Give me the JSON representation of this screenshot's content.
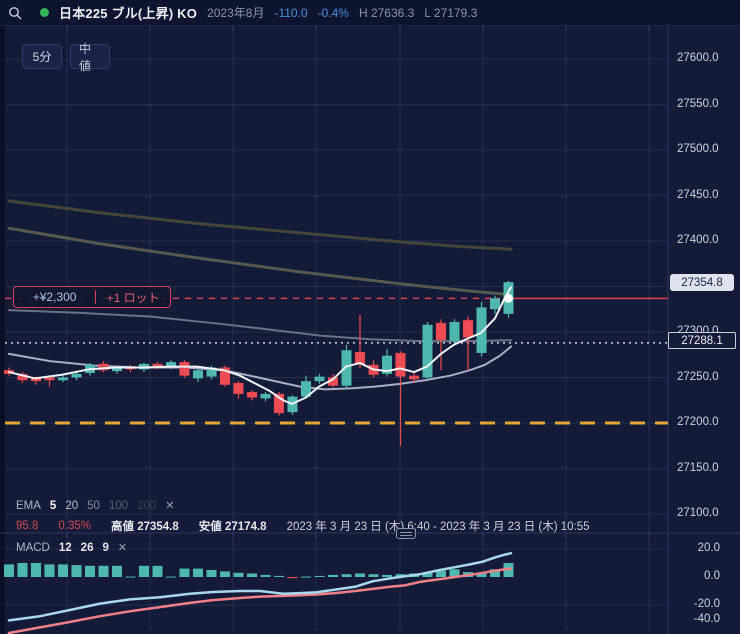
{
  "top_bar": {
    "symbol": "日本225 ブル(上昇) KO",
    "month": "2023年8月",
    "change": "-110.0",
    "change_pct": "-0.4%",
    "high": "H 27636.3",
    "low": "L 27179.3"
  },
  "toolbar": {
    "interval_button": "5分",
    "mid_price_button": "中値"
  },
  "position_box": {
    "pnl": "+¥2,300",
    "lots": "+1 ロット"
  },
  "badges": {
    "last_price": "27354.8",
    "mid_price": "27288.1"
  },
  "ema_legend": {
    "label": "EMA",
    "periods": [
      "5",
      "20",
      "50",
      "100",
      "200"
    ],
    "close": "✕"
  },
  "info_row": {
    "change": "95.8",
    "change_pct": "0.35%",
    "high_label": "高値",
    "high_value": "27354.8",
    "low_label": "安値",
    "low_value": "27174.8",
    "date_range": "2023 年 3 月 23 日 (木) 6:40 - 2023 年 3 月 23 日 (木) 10:55"
  },
  "macd_legend": {
    "label": "MACD",
    "params": [
      "12",
      "26",
      "9"
    ],
    "close": "✕"
  },
  "colors": {
    "background": "#131b38",
    "topbar": "#0d1430",
    "up_candle": "#4fb8ae",
    "down_candle": "#ef4b52",
    "position_line": "#e8404e",
    "mid_line": "#d2d8e6",
    "support_line": "#e5a532",
    "macd_line": "#a9d7ee",
    "signal_line": "#ef8089",
    "ema5": "#f2f4f8",
    "ema20": "#a9b0c4",
    "ema50": "#6b7288",
    "ema100": "#565a4e",
    "ema200": "#45463a",
    "grid": "rgba(130,150,205,0.16)",
    "blue_text": "#4b8fdd",
    "green_dot": "#33b35a"
  },
  "chart_data": {
    "type": "candlestick+macd",
    "title": "日本225 ブル(上昇) KO 5分足",
    "price_axis": {
      "labeled_ticks": [
        27600.0,
        27550.0,
        27500.0,
        27450.0,
        27400.0,
        27300.0,
        27250.0,
        27200.0,
        27150.0,
        27100.0
      ],
      "grid_ticks": [
        27600,
        27550,
        27500,
        27450,
        27400,
        27350,
        27300,
        27250,
        27200,
        27150,
        27100
      ],
      "last_price": 27354.8,
      "mid_price": 27288.1
    },
    "reference_lines": {
      "position_entry": 27337.0,
      "mid": 27288.1,
      "support": 27200.0
    },
    "session": {
      "high": 27354.8,
      "low": 27174.8,
      "change": 95.8,
      "change_pct": 0.35
    },
    "candles": [
      [
        27258,
        27261,
        27252,
        27254
      ],
      [
        27254,
        27256,
        27244,
        27247
      ],
      [
        27249,
        27251,
        27242,
        27246
      ],
      [
        27250,
        27252,
        27240,
        27247
      ],
      [
        27247,
        27252,
        27245,
        27250
      ],
      [
        27250,
        27256,
        27247,
        27254
      ],
      [
        27255,
        27266,
        27252,
        27264
      ],
      [
        27265,
        27268,
        27256,
        27258
      ],
      [
        27257,
        27263,
        27254,
        27262
      ],
      [
        27262,
        27264,
        27256,
        27259
      ],
      [
        27259,
        27266,
        27256,
        27265
      ],
      [
        27265,
        27267,
        27259,
        27261
      ],
      [
        27261,
        27269,
        27259,
        27267
      ],
      [
        27267,
        27269,
        27250,
        27252
      ],
      [
        27249,
        27260,
        27245,
        27258
      ],
      [
        27251,
        27263,
        27248,
        27261
      ],
      [
        27261,
        27263,
        27240,
        27242
      ],
      [
        27244,
        27246,
        27227,
        27232
      ],
      [
        27234,
        27236,
        27225,
        27228
      ],
      [
        27227,
        27234,
        27224,
        27232
      ],
      [
        27232,
        27234,
        27208,
        27211
      ],
      [
        27212,
        27231,
        27209,
        27229
      ],
      [
        27229,
        27252,
        27227,
        27246
      ],
      [
        27246,
        27254,
        27243,
        27251
      ],
      [
        27250,
        27254,
        27239,
        27241
      ],
      [
        27241,
        27286,
        27238,
        27280
      ],
      [
        27278,
        27319,
        27260,
        27264
      ],
      [
        27264,
        27269,
        27250,
        27253
      ],
      [
        27254,
        27281,
        27251,
        27274
      ],
      [
        27277,
        27279,
        27174.8,
        27251
      ],
      [
        27252,
        27257,
        27244,
        27248
      ],
      [
        27250,
        27311,
        27246,
        27308
      ],
      [
        27310,
        27314,
        27258,
        27291
      ],
      [
        27290,
        27314,
        27287,
        27311
      ],
      [
        27313,
        27317,
        27258,
        27294
      ],
      [
        27277,
        27333,
        27273,
        27327
      ],
      [
        27325,
        27340,
        27320,
        27337
      ],
      [
        27320,
        27356,
        27316,
        27354.8
      ]
    ],
    "ema": {
      "ema5": [
        [
          9,
          27256
        ],
        [
          35,
          27249
        ],
        [
          62,
          27253
        ],
        [
          89,
          27259
        ],
        [
          116,
          27261
        ],
        [
          143,
          27261
        ],
        [
          170,
          27262
        ],
        [
          197,
          27262
        ],
        [
          224,
          27258
        ],
        [
          240,
          27252
        ],
        [
          256,
          27243
        ],
        [
          270,
          27235
        ],
        [
          283,
          27225
        ],
        [
          292,
          27221
        ],
        [
          306,
          27228
        ],
        [
          319,
          27240
        ],
        [
          333,
          27248
        ],
        [
          346,
          27262
        ],
        [
          360,
          27266
        ],
        [
          373,
          27259
        ],
        [
          387,
          27257
        ],
        [
          400,
          27260
        ],
        [
          414,
          27256
        ],
        [
          427,
          27262
        ],
        [
          441,
          27276
        ],
        [
          454,
          27286
        ],
        [
          468,
          27293
        ],
        [
          481,
          27299
        ],
        [
          495,
          27315
        ],
        [
          505,
          27338
        ],
        [
          511,
          27349
        ]
      ],
      "ema20": [
        [
          9,
          27276
        ],
        [
          50,
          27268
        ],
        [
          95,
          27263
        ],
        [
          140,
          27261
        ],
        [
          185,
          27261
        ],
        [
          224,
          27258
        ],
        [
          250,
          27252
        ],
        [
          275,
          27246
        ],
        [
          300,
          27240
        ],
        [
          325,
          27237
        ],
        [
          350,
          27238
        ],
        [
          375,
          27240
        ],
        [
          400,
          27243
        ],
        [
          425,
          27247
        ],
        [
          450,
          27252
        ],
        [
          470,
          27258
        ],
        [
          485,
          27264
        ],
        [
          500,
          27274
        ],
        [
          511,
          27284
        ]
      ],
      "ema50": [
        [
          9,
          27324
        ],
        [
          80,
          27321
        ],
        [
          150,
          27317
        ],
        [
          220,
          27309
        ],
        [
          267,
          27303
        ],
        [
          320,
          27296
        ],
        [
          370,
          27292
        ],
        [
          420,
          27290
        ],
        [
          470,
          27290
        ],
        [
          511,
          27291
        ]
      ],
      "ema100": [
        [
          9,
          27414
        ],
        [
          100,
          27397
        ],
        [
          200,
          27381
        ],
        [
          300,
          27366
        ],
        [
          400,
          27353
        ],
        [
          460,
          27346
        ],
        [
          511,
          27341
        ]
      ],
      "ema200": [
        [
          9,
          27444
        ],
        [
          100,
          27431
        ],
        [
          200,
          27419
        ],
        [
          300,
          27409
        ],
        [
          400,
          27399
        ],
        [
          460,
          27394
        ],
        [
          511,
          27391
        ]
      ]
    },
    "macd": {
      "params": [
        12,
        26,
        9
      ],
      "axis_ticks": [
        20.0,
        0.0,
        -20.0,
        -40.0
      ],
      "ylim": [
        -45,
        25
      ],
      "histogram": [
        9,
        10,
        10,
        9,
        9,
        8.5,
        8,
        8,
        8,
        0.3,
        8,
        8,
        0.3,
        6,
        6,
        5,
        4,
        3,
        2.5,
        1.5,
        0.8,
        -0.8,
        0.3,
        0.8,
        1.5,
        2,
        2.5,
        2,
        1.5,
        2,
        2.5,
        3,
        4.5,
        5.5,
        3.5,
        3,
        5.5,
        10
      ],
      "macd_line": [
        [
          9,
          -31
        ],
        [
          40,
          -28
        ],
        [
          67,
          -24
        ],
        [
          100,
          -19
        ],
        [
          130,
          -16
        ],
        [
          160,
          -14.5
        ],
        [
          190,
          -12
        ],
        [
          213,
          -10.7
        ],
        [
          240,
          -10
        ],
        [
          260,
          -10
        ],
        [
          283,
          -12
        ],
        [
          300,
          -11.5
        ],
        [
          316,
          -11
        ],
        [
          335,
          -9
        ],
        [
          355,
          -7
        ],
        [
          373,
          -3
        ],
        [
          390,
          -1
        ],
        [
          405,
          0.5
        ],
        [
          420,
          2
        ],
        [
          440,
          5
        ],
        [
          455,
          7
        ],
        [
          470,
          9
        ],
        [
          483,
          11
        ],
        [
          495,
          14
        ],
        [
          505,
          16
        ],
        [
          511,
          17
        ]
      ],
      "signal_line": [
        [
          9,
          -40
        ],
        [
          40,
          -36
        ],
        [
          67,
          -32.5
        ],
        [
          100,
          -28
        ],
        [
          130,
          -24.5
        ],
        [
          160,
          -21.5
        ],
        [
          190,
          -18.5
        ],
        [
          213,
          -16.5
        ],
        [
          240,
          -15
        ],
        [
          260,
          -14
        ],
        [
          283,
          -13.5
        ],
        [
          300,
          -13
        ],
        [
          316,
          -12.5
        ],
        [
          335,
          -11.5
        ],
        [
          355,
          -10
        ],
        [
          373,
          -8.5
        ],
        [
          390,
          -7
        ],
        [
          405,
          -6
        ],
        [
          420,
          -3.5
        ],
        [
          440,
          -1.5
        ],
        [
          455,
          0
        ],
        [
          470,
          1.5
        ],
        [
          483,
          3
        ],
        [
          495,
          4.5
        ],
        [
          505,
          5.5
        ],
        [
          511,
          6
        ]
      ]
    }
  }
}
